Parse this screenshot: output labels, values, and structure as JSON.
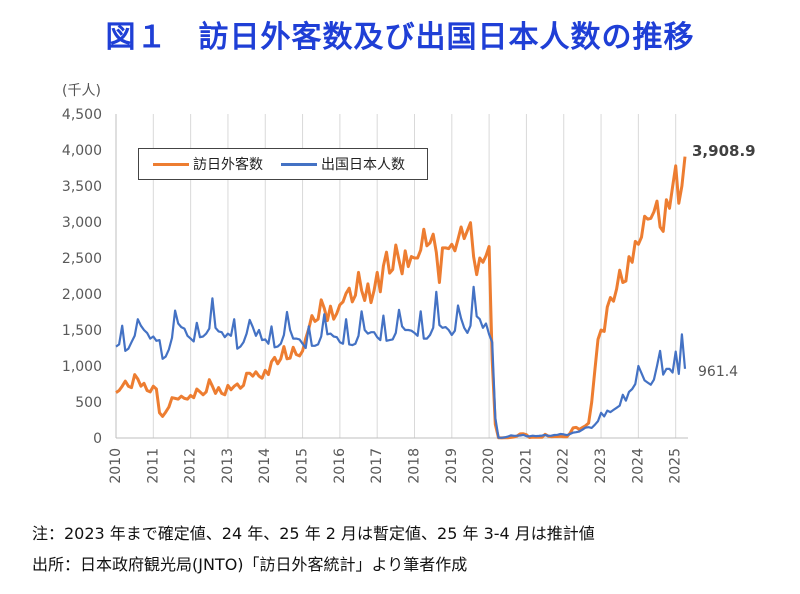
{
  "title": "図１　訪日外客数及び出国日本人数の推移",
  "unit_label": "(千人)",
  "notes": {
    "line1": "注：2023 年まで確定値、24 年、25 年 2 月は暫定値、25 年 3-4 月は推計値",
    "line2": "出所：日本政府観光局(JNTO)「訪日外客統計」より筆者作成"
  },
  "chart_data": {
    "type": "line",
    "title": "図１　訪日外客数及び出国日本人数の推移",
    "ylabel": "(千人)",
    "ylim": [
      0,
      4500
    ],
    "yticks": [
      0,
      500,
      1000,
      1500,
      2000,
      2500,
      3000,
      3500,
      4000,
      4500
    ],
    "ytick_labels": [
      "0",
      "500",
      "1,000",
      "1,500",
      "2,000",
      "2,500",
      "3,000",
      "3,500",
      "4,000",
      "4,500"
    ],
    "xlim": [
      2010,
      2025.33
    ],
    "xticks": [
      2010,
      2011,
      2012,
      2013,
      2014,
      2015,
      2016,
      2017,
      2018,
      2019,
      2020,
      2021,
      2022,
      2023,
      2024,
      2025
    ],
    "legend_position": "top-left",
    "grid": "vertical",
    "series": [
      {
        "name": "訪日外客数",
        "color": "#ed7d31",
        "end_label": "3,908.9",
        "start_year": 2010,
        "monthly": [
          630,
          660,
          720,
          790,
          720,
          700,
          880,
          820,
          720,
          760,
          660,
          640,
          720,
          680,
          350,
          300,
          360,
          430,
          560,
          550,
          540,
          580,
          550,
          540,
          590,
          560,
          680,
          640,
          600,
          640,
          810,
          720,
          620,
          700,
          620,
          600,
          730,
          670,
          720,
          750,
          690,
          730,
          900,
          900,
          860,
          920,
          860,
          830,
          940,
          880,
          1060,
          1120,
          1030,
          1100,
          1270,
          1100,
          1110,
          1260,
          1160,
          1140,
          1210,
          1380,
          1520,
          1700,
          1620,
          1650,
          1920,
          1800,
          1630,
          1830,
          1650,
          1730,
          1850,
          1890,
          2010,
          2080,
          1890,
          1980,
          2300,
          2050,
          1910,
          2140,
          1880,
          2050,
          2300,
          2030,
          2390,
          2580,
          2290,
          2340,
          2680,
          2470,
          2280,
          2600,
          2380,
          2520,
          2500,
          2500,
          2610,
          2900,
          2670,
          2710,
          2830,
          2580,
          2160,
          2640,
          2640,
          2630,
          2690,
          2600,
          2760,
          2930,
          2770,
          2880,
          2990,
          2520,
          2270,
          2500,
          2440,
          2530,
          2660,
          1080,
          190,
          3,
          2,
          3,
          4,
          9,
          14,
          28,
          57,
          59,
          46,
          7,
          12,
          11,
          10,
          10,
          51,
          26,
          18,
          21,
          21,
          24,
          17,
          17,
          66,
          140,
          147,
          120,
          144,
          169,
          207,
          499,
          934,
          1370,
          1500,
          1480,
          1820,
          1950,
          1900,
          2070,
          2330,
          2160,
          2180,
          2520,
          2440,
          2730,
          2690,
          2790,
          3080,
          3040,
          3050,
          3140,
          3290,
          2930,
          2870,
          3310,
          3190,
          3490,
          3780,
          3260,
          3500,
          3909
        ]
      },
      {
        "name": "出国日本人数",
        "color": "#4472c4",
        "end_label": "961.4",
        "start_year": 2010,
        "monthly": [
          1270,
          1300,
          1560,
          1210,
          1240,
          1330,
          1420,
          1650,
          1560,
          1500,
          1460,
          1380,
          1410,
          1350,
          1360,
          1100,
          1130,
          1230,
          1390,
          1770,
          1590,
          1540,
          1520,
          1420,
          1380,
          1340,
          1600,
          1400,
          1410,
          1450,
          1520,
          1940,
          1530,
          1480,
          1470,
          1400,
          1450,
          1420,
          1650,
          1240,
          1270,
          1330,
          1450,
          1640,
          1540,
          1420,
          1500,
          1360,
          1370,
          1310,
          1550,
          1260,
          1270,
          1310,
          1430,
          1750,
          1500,
          1380,
          1380,
          1370,
          1310,
          1250,
          1550,
          1280,
          1280,
          1300,
          1410,
          1720,
          1440,
          1450,
          1410,
          1400,
          1330,
          1310,
          1650,
          1300,
          1290,
          1310,
          1420,
          1760,
          1500,
          1450,
          1470,
          1470,
          1400,
          1360,
          1700,
          1350,
          1360,
          1370,
          1460,
          1780,
          1550,
          1500,
          1500,
          1490,
          1460,
          1420,
          1760,
          1380,
          1380,
          1430,
          1530,
          2030,
          1570,
          1530,
          1540,
          1500,
          1430,
          1490,
          1840,
          1660,
          1530,
          1460,
          1560,
          2100,
          1690,
          1650,
          1530,
          1590,
          1440,
          1330,
          280,
          4,
          3,
          9,
          20,
          36,
          30,
          32,
          35,
          43,
          27,
          23,
          32,
          27,
          29,
          33,
          41,
          30,
          32,
          41,
          45,
          55,
          50,
          40,
          55,
          75,
          80,
          90,
          115,
          145,
          150,
          140,
          183,
          235,
          350,
          300,
          380,
          360,
          390,
          420,
          450,
          600,
          520,
          640,
          680,
          750,
          1000,
          900,
          800,
          770,
          740,
          810,
          1000,
          1210,
          880,
          960,
          960,
          910,
          1200,
          890,
          1440,
          961
        ]
      }
    ]
  }
}
